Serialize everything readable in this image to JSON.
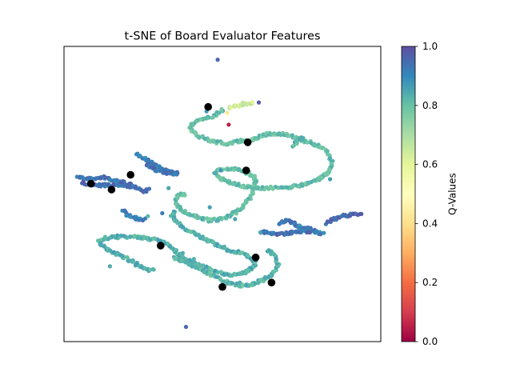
{
  "chart_data": {
    "type": "scatter",
    "title": "t-SNE of Board Evaluator Features",
    "xlabel": "",
    "ylabel": "",
    "xlim": [
      0,
      100
    ],
    "ylim": [
      0,
      100
    ],
    "axis_ticks_visible": false,
    "grid": false,
    "colormap": "Spectral",
    "colorbar": {
      "label": "Q-Values",
      "range": [
        0.0,
        1.0
      ],
      "ticks": [
        0.0,
        0.2,
        0.4,
        0.6,
        0.8,
        1.0
      ],
      "tick_labels": [
        "0.0",
        "0.2",
        "0.4",
        "0.6",
        "0.8",
        "1.0"
      ],
      "placement": "right"
    },
    "series": [
      {
        "role": "embedding",
        "marker_size": "small",
        "paths": [
          {
            "q": 0.8,
            "pts": [
              [
                50.5,
                78.5
              ],
              [
                46,
                76
              ],
              [
                40.5,
                74
              ],
              [
                40,
                72
              ],
              [
                42,
                70
              ],
              [
                46,
                68
              ],
              [
                51,
                67
              ],
              [
                56,
                68
              ],
              [
                58.5,
                68
              ],
              [
                61,
                69
              ],
              [
                65,
                70.5
              ],
              [
                68,
                70.5
              ],
              [
                72,
                69.5
              ],
              [
                76,
                68
              ],
              [
                80,
                66.5
              ],
              [
                83,
                64.5
              ],
              [
                84.5,
                61.5
              ],
              [
                84,
                58
              ],
              [
                81,
                55.5
              ],
              [
                77,
                53.5
              ],
              [
                72,
                52.5
              ],
              [
                67,
                52
              ],
              [
                62,
                52
              ],
              [
                57,
                52.5
              ],
              [
                52,
                54
              ],
              [
                49,
                55.5
              ],
              [
                47.5,
                57
              ],
              [
                48.5,
                58
              ],
              [
                52,
                58.5
              ],
              [
                56,
                58
              ],
              [
                58.5,
                57
              ],
              [
                60,
                56
              ],
              [
                60.5,
                54.5
              ],
              [
                60,
                52.5
              ],
              [
                59.5,
                50.5
              ],
              [
                59,
                49
              ],
              [
                57.5,
                47
              ],
              [
                55,
                44.5
              ],
              [
                52,
                42.5
              ],
              [
                49,
                41.5
              ],
              [
                46,
                41
              ],
              [
                43,
                42
              ],
              [
                40,
                43
              ],
              [
                37,
                44.5
              ],
              [
                35.5,
                47
              ],
              [
                35.5,
                49
              ],
              [
                36.5,
                50
              ],
              [
                38.5,
                50
              ]
            ]
          },
          {
            "q": 0.82,
            "pts": [
              [
                72.5,
                66.5
              ],
              [
                74,
                68.5
              ],
              [
                76,
                69
              ]
            ]
          },
          {
            "q": 0.83,
            "pts": [
              [
                35,
                44
              ],
              [
                34,
                43
              ],
              [
                35,
                41
              ],
              [
                37,
                39
              ],
              [
                40,
                37
              ],
              [
                44,
                35
              ],
              [
                48,
                33
              ],
              [
                52,
                31
              ],
              [
                56,
                30
              ],
              [
                59,
                28.5
              ],
              [
                60.5,
                27
              ],
              [
                60,
                25.5
              ],
              [
                58,
                24
              ],
              [
                56,
                23
              ],
              [
                53,
                22.5
              ],
              [
                50,
                23
              ],
              [
                47,
                24
              ],
              [
                44,
                25.5
              ],
              [
                40,
                27
              ],
              [
                36,
                30
              ],
              [
                33,
                33
              ],
              [
                30,
                34.5
              ],
              [
                26,
                35
              ],
              [
                22,
                35.5
              ],
              [
                17,
                35.5
              ],
              [
                13,
                35
              ],
              [
                11,
                34
              ],
              [
                12,
                32.5
              ],
              [
                14,
                31
              ],
              [
                17,
                29.5
              ],
              [
                20,
                28
              ],
              [
                23,
                26
              ],
              [
                26,
                24.5
              ],
              [
                28.5,
                24
              ]
            ]
          },
          {
            "q": 0.82,
            "pts": [
              [
                35,
                28.5
              ],
              [
                38,
                27
              ],
              [
                41,
                25.5
              ],
              [
                44,
                24
              ],
              [
                47,
                22.5
              ],
              [
                50,
                20.5
              ],
              [
                53,
                19.5
              ],
              [
                56,
                19
              ],
              [
                60,
                19.5
              ],
              [
                63,
                21
              ],
              [
                65.5,
                22.5
              ],
              [
                67,
                24.5
              ],
              [
                67.5,
                26.5
              ],
              [
                67,
                28
              ],
              [
                66,
                29.5
              ],
              [
                64,
                31
              ]
            ]
          },
          {
            "q": 0.92,
            "pts": [
              [
                23,
                63.5
              ],
              [
                25.5,
                62
              ],
              [
                28,
                60.5
              ],
              [
                30,
                59
              ],
              [
                32,
                58
              ],
              [
                34,
                57.5
              ],
              [
                36,
                57
              ]
            ]
          },
          {
            "q": 0.94,
            "pts": [
              [
                26,
                60
              ],
              [
                28.5,
                58.5
              ],
              [
                31,
                57.5
              ],
              [
                33.5,
                57
              ],
              [
                36,
                56.5
              ]
            ]
          },
          {
            "q": 0.93,
            "pts": [
              [
                4.5,
                56
              ],
              [
                7,
                55
              ],
              [
                10,
                55.5
              ],
              [
                13,
                55.5
              ],
              [
                17,
                54.5
              ],
              [
                20,
                53.5
              ],
              [
                23,
                52
              ],
              [
                25,
                51
              ],
              [
                27,
                51.5
              ]
            ]
          },
          {
            "q": 0.95,
            "pts": [
              [
                6,
                54
              ],
              [
                8,
                53
              ],
              [
                11,
                53
              ],
              [
                14,
                53
              ],
              [
                18,
                53
              ],
              [
                21,
                52.5
              ]
            ]
          },
          {
            "q": 0.92,
            "pts": [
              [
                18.5,
                44.5
              ],
              [
                20,
                43
              ],
              [
                22,
                42
              ],
              [
                24,
                41.5
              ],
              [
                26,
                41.5
              ]
            ]
          },
          {
            "q": 0.92,
            "pts": [
              [
                68,
                40
              ],
              [
                70,
                41
              ],
              [
                72,
                40.5
              ],
              [
                74,
                39
              ],
              [
                76,
                38.5
              ],
              [
                78,
                38
              ],
              [
                80,
                37
              ],
              [
                82,
                36.5
              ]
            ]
          },
          {
            "q": 0.95,
            "pts": [
              [
                83,
                40
              ],
              [
                85,
                41.5
              ],
              [
                88,
                42.5
              ],
              [
                91,
                43
              ],
              [
                94,
                43.5
              ]
            ]
          },
          {
            "q": 0.94,
            "pts": [
              [
                62,
                37
              ],
              [
                64,
                37
              ],
              [
                66,
                36.5
              ],
              [
                69,
                36.5
              ],
              [
                72,
                37
              ],
              [
                75,
                37.5
              ],
              [
                78,
                37
              ]
            ]
          },
          {
            "q": 0.64,
            "pts": [
              [
                52,
                79
              ],
              [
                53.5,
                79.5
              ],
              [
                55,
                80
              ],
              [
                56.5,
                80.5
              ],
              [
                58,
                80.5
              ],
              [
                60,
                81
              ]
            ]
          }
        ],
        "points": [
          {
            "x": 48.5,
            "y": 95.5,
            "q": 0.96
          },
          {
            "x": 38.5,
            "y": 5,
            "q": 0.96
          },
          {
            "x": 52,
            "y": 73.5,
            "q": 0.05
          },
          {
            "x": 51.5,
            "y": 77.5,
            "q": 0.42
          },
          {
            "x": 61.5,
            "y": 81,
            "q": 0.98
          },
          {
            "x": 45,
            "y": 78,
            "q": 0.88
          },
          {
            "x": 49.5,
            "y": 58,
            "q": 0.88
          },
          {
            "x": 33,
            "y": 52,
            "q": 0.85
          },
          {
            "x": 46,
            "y": 45.5,
            "q": 0.86
          },
          {
            "x": 54,
            "y": 41.5,
            "q": 0.85
          },
          {
            "x": 62,
            "y": 37,
            "q": 0.85
          },
          {
            "x": 14.5,
            "y": 25.5,
            "q": 0.84
          },
          {
            "x": 18.5,
            "y": 29,
            "q": 0.85
          },
          {
            "x": 57.5,
            "y": 19,
            "q": 0.85
          },
          {
            "x": 55.5,
            "y": 20,
            "q": 0.84
          },
          {
            "x": 31,
            "y": 43.5,
            "q": 0.92
          },
          {
            "x": 26.5,
            "y": 42.5,
            "q": 0.82
          },
          {
            "x": 84,
            "y": 55,
            "q": 0.86
          },
          {
            "x": 41,
            "y": 28,
            "q": 0.83
          },
          {
            "x": 37.5,
            "y": 30,
            "q": 0.84
          }
        ]
      },
      {
        "role": "highlighted-samples",
        "marker": "black-dot",
        "points": [
          {
            "x": 45.5,
            "y": 79.5
          },
          {
            "x": 58,
            "y": 67.5
          },
          {
            "x": 57.5,
            "y": 58
          },
          {
            "x": 8.5,
            "y": 53.5
          },
          {
            "x": 15,
            "y": 51.5
          },
          {
            "x": 21,
            "y": 56.5
          },
          {
            "x": 30.5,
            "y": 32.5
          },
          {
            "x": 60.5,
            "y": 28.5
          },
          {
            "x": 65.5,
            "y": 20
          },
          {
            "x": 50,
            "y": 18.5
          }
        ]
      }
    ]
  }
}
